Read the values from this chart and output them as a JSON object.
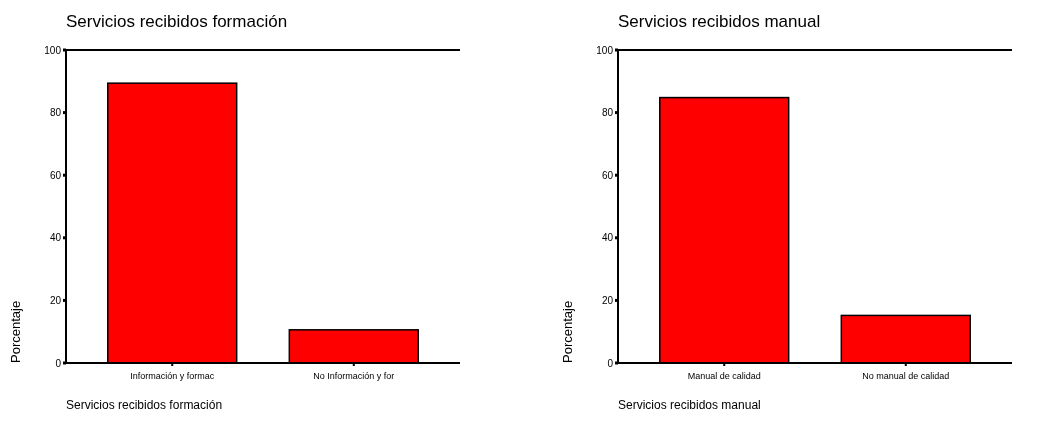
{
  "chart_data": [
    {
      "type": "bar",
      "title": "Servicios recibidos formación",
      "xlabel": "Servicios recibidos formación",
      "ylabel": "Porcentaje",
      "categories": [
        "Información y formac",
        "No Información y for"
      ],
      "values": [
        89.4,
        10.6
      ],
      "color": "#ff0000",
      "ylim": [
        0,
        100
      ],
      "yticks": [
        0,
        20,
        40,
        60,
        80,
        100
      ],
      "grid": false
    },
    {
      "type": "bar",
      "title": "Servicios recibidos manual",
      "xlabel": "Servicios recibidos manual",
      "ylabel": "Porcentaje",
      "categories": [
        "Manual de calidad",
        "No manual de calidad"
      ],
      "values": [
        84.8,
        15.2
      ],
      "color": "#ff0000",
      "ylim": [
        0,
        100
      ],
      "yticks": [
        0,
        20,
        40,
        60,
        80,
        100
      ],
      "grid": false
    }
  ]
}
